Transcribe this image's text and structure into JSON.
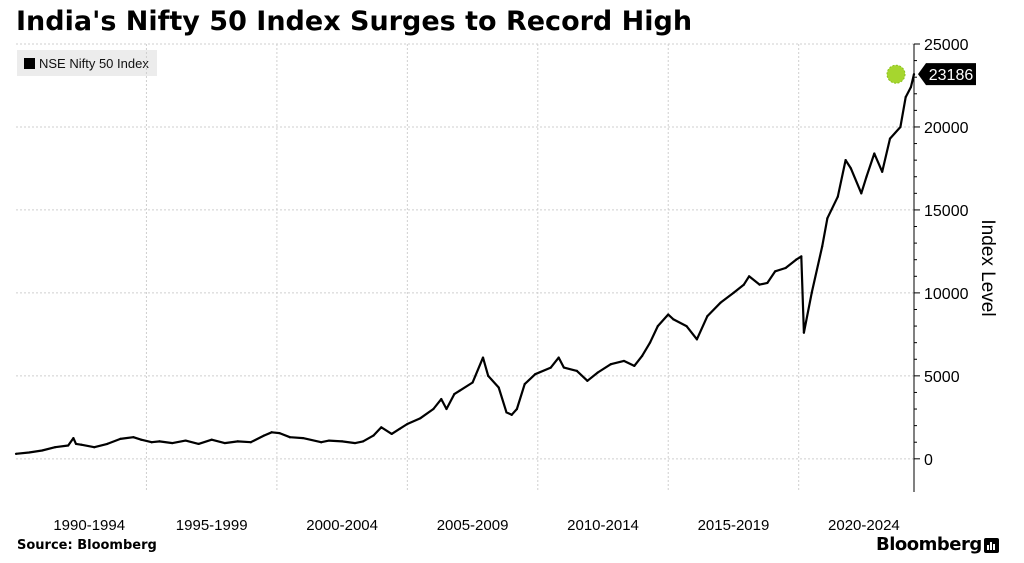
{
  "title": "India's Nifty 50 Index Surges to Record High",
  "source": "Source: Bloomberg",
  "brand": "Bloomberg",
  "colors": {
    "line": "#000000",
    "highlight": "#a6d62e",
    "grid": "#cfcfcf",
    "legend_bg": "#ececec"
  },
  "chart_data": {
    "type": "line",
    "title": "India's Nifty 50 Index Surges to Record High",
    "ylabel": "Index Level",
    "xlabel": "",
    "ylim": [
      -2000,
      25000
    ],
    "xlim": [
      1990.0,
      2024.42
    ],
    "yticks": [
      0,
      5000,
      10000,
      15000,
      20000,
      25000
    ],
    "ytick_labels": [
      "0",
      "5000",
      "10000",
      "15000",
      "20000",
      "25000"
    ],
    "xtick_labels": [
      "1990-1994",
      "1995-1999",
      "2000-2004",
      "2005-2009",
      "2010-2014",
      "2015-2019",
      "2020-2024"
    ],
    "x_tick_years": [
      1995,
      2000,
      2005,
      2010,
      2015,
      2020
    ],
    "grid": true,
    "legend_position": "top-left",
    "last_value_label": "23186",
    "series": [
      {
        "name": "NSE Nifty 50 Index",
        "x": [
          1990.0,
          1990.5,
          1991.0,
          1991.5,
          1992.0,
          1992.2,
          1992.3,
          1992.5,
          1993.0,
          1993.5,
          1994.0,
          1994.5,
          1994.8,
          1995.2,
          1995.5,
          1996.0,
          1996.5,
          1997.0,
          1997.5,
          1998.0,
          1998.5,
          1999.0,
          1999.5,
          1999.8,
          2000.1,
          2000.5,
          2001.0,
          2001.7,
          2002.0,
          2002.5,
          2003.0,
          2003.3,
          2003.7,
          2004.0,
          2004.4,
          2004.7,
          2005.0,
          2005.5,
          2006.0,
          2006.3,
          2006.5,
          2006.8,
          2007.0,
          2007.5,
          2007.9,
          2008.1,
          2008.5,
          2008.8,
          2009.0,
          2009.2,
          2009.5,
          2009.9,
          2010.5,
          2010.8,
          2011.0,
          2011.5,
          2011.9,
          2012.3,
          2012.8,
          2013.3,
          2013.7,
          2014.0,
          2014.3,
          2014.6,
          2015.0,
          2015.2,
          2015.7,
          2016.1,
          2016.5,
          2017.0,
          2017.5,
          2017.9,
          2018.1,
          2018.5,
          2018.8,
          2019.1,
          2019.5,
          2019.9,
          2020.1,
          2020.2,
          2020.5,
          2020.9,
          2021.1,
          2021.5,
          2021.8,
          2022.0,
          2022.4,
          2022.6,
          2022.9,
          2023.2,
          2023.5,
          2023.9,
          2024.1,
          2024.3,
          2024.42
        ],
        "values": [
          300,
          380,
          500,
          700,
          800,
          1250,
          900,
          850,
          700,
          900,
          1200,
          1300,
          1150,
          1000,
          1050,
          950,
          1100,
          900,
          1150,
          950,
          1050,
          1000,
          1400,
          1600,
          1550,
          1300,
          1250,
          1000,
          1100,
          1050,
          950,
          1050,
          1400,
          1900,
          1500,
          1800,
          2100,
          2450,
          3000,
          3600,
          3000,
          3900,
          4100,
          4600,
          6100,
          5000,
          4300,
          2800,
          2650,
          3000,
          4500,
          5100,
          5500,
          6100,
          5500,
          5300,
          4700,
          5200,
          5700,
          5900,
          5600,
          6200,
          7000,
          8000,
          8700,
          8400,
          8000,
          7200,
          8600,
          9400,
          10000,
          10500,
          11000,
          10500,
          10600,
          11300,
          11500,
          12000,
          12200,
          7600,
          10000,
          12800,
          14500,
          15800,
          18000,
          17500,
          16000,
          17000,
          18400,
          17300,
          19300,
          20000,
          21800,
          22400,
          23186
        ]
      }
    ]
  }
}
